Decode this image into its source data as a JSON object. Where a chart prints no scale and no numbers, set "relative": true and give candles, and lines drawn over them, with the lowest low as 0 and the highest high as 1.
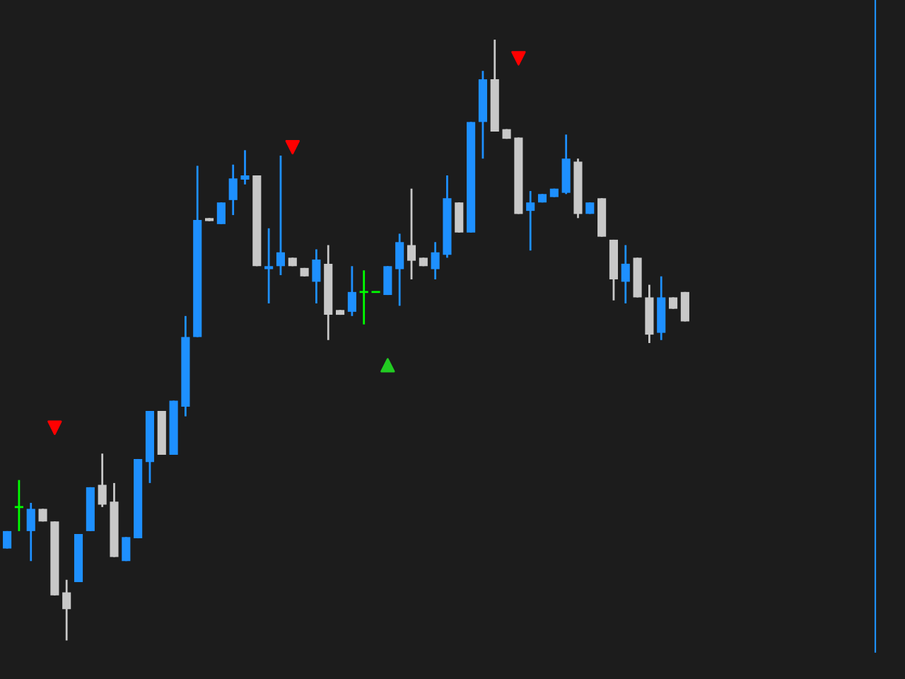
{
  "chart_data": {
    "type": "candlestick",
    "relative": true,
    "grid": false,
    "categories": [
      null,
      null,
      null,
      null,
      null,
      null,
      null,
      null,
      null,
      null,
      null,
      null,
      null,
      null,
      null,
      null,
      null,
      null,
      null,
      null,
      null,
      null,
      null,
      null,
      null,
      null,
      null,
      null,
      null,
      null,
      null,
      null,
      null,
      null,
      null,
      null,
      null,
      null,
      null,
      null,
      null,
      null,
      null,
      null,
      null,
      null,
      null,
      null,
      null,
      null,
      null,
      null,
      null,
      null,
      null,
      null,
      null,
      null
    ],
    "ohlc": [
      [
        0.153,
        0.182,
        0.153,
        0.182
      ],
      [
        0.222,
        0.267,
        0.182,
        0.222
      ],
      [
        0.182,
        0.229,
        0.132,
        0.219
      ],
      [
        0.219,
        0.219,
        0.198,
        0.198
      ],
      [
        0.198,
        0.198,
        0.075,
        0.075
      ],
      [
        0.08,
        0.101,
        0,
        0.052
      ],
      [
        0.097,
        0.177,
        0.097,
        0.177
      ],
      [
        0.182,
        0.255,
        0.182,
        0.255
      ],
      [
        0.259,
        0.311,
        0.222,
        0.226
      ],
      [
        0.231,
        0.262,
        0.139,
        0.139
      ],
      [
        0.132,
        0.172,
        0.132,
        0.172
      ],
      [
        0.17,
        0.302,
        0.17,
        0.302
      ],
      [
        0.297,
        0.382,
        0.262,
        0.382
      ],
      [
        0.382,
        0.382,
        0.309,
        0.309
      ],
      [
        0.309,
        0.399,
        0.309,
        0.399
      ],
      [
        0.389,
        0.54,
        0.373,
        0.505
      ],
      [
        0.505,
        0.79,
        0.505,
        0.7
      ],
      [
        0.703,
        0.703,
        0.698,
        0.698
      ],
      [
        0.693,
        0.729,
        0.693,
        0.729
      ],
      [
        0.733,
        0.792,
        0.708,
        0.769
      ],
      [
        0.767,
        0.816,
        0.759,
        0.774
      ],
      [
        0.774,
        0.774,
        0.623,
        0.623
      ],
      [
        0.618,
        0.686,
        0.561,
        0.623
      ],
      [
        0.623,
        0.807,
        0.608,
        0.646
      ],
      [
        0.637,
        0.637,
        0.623,
        0.623
      ],
      [
        0.62,
        0.62,
        0.606,
        0.606
      ],
      [
        0.597,
        0.651,
        0.561,
        0.634
      ],
      [
        0.627,
        0.658,
        0.5,
        0.542
      ],
      [
        0.55,
        0.55,
        0.542,
        0.542
      ],
      [
        0.547,
        0.623,
        0.54,
        0.58
      ],
      [
        0.58,
        0.616,
        0.526,
        0.58
      ],
      [
        0.58,
        0.58,
        0.58,
        0.58
      ],
      [
        0.575,
        0.623,
        0.575,
        0.623
      ],
      [
        0.618,
        0.677,
        0.557,
        0.663
      ],
      [
        0.658,
        0.752,
        0.601,
        0.632
      ],
      [
        0.637,
        0.637,
        0.623,
        0.623
      ],
      [
        0.618,
        0.663,
        0.601,
        0.646
      ],
      [
        0.642,
        0.774,
        0.637,
        0.736
      ],
      [
        0.729,
        0.729,
        0.679,
        0.679
      ],
      [
        0.679,
        0.863,
        0.679,
        0.863
      ],
      [
        0.863,
        0.948,
        0.802,
        0.934
      ],
      [
        0.934,
        1,
        0.847,
        0.847
      ],
      [
        0.851,
        0.851,
        0.835,
        0.835
      ],
      [
        0.837,
        0.837,
        0.71,
        0.71
      ],
      [
        0.715,
        0.748,
        0.649,
        0.729
      ],
      [
        0.729,
        0.743,
        0.729,
        0.743
      ],
      [
        0.738,
        0.752,
        0.738,
        0.752
      ],
      [
        0.745,
        0.842,
        0.743,
        0.802
      ],
      [
        0.797,
        0.802,
        0.703,
        0.71
      ],
      [
        0.71,
        0.729,
        0.71,
        0.729
      ],
      [
        0.736,
        0.736,
        0.672,
        0.672
      ],
      [
        0.667,
        0.667,
        0.566,
        0.601
      ],
      [
        0.597,
        0.658,
        0.561,
        0.627
      ],
      [
        0.637,
        0.637,
        0.571,
        0.571
      ],
      [
        0.571,
        0.592,
        0.495,
        0.509
      ],
      [
        0.512,
        0.606,
        0.5,
        0.571
      ],
      [
        0.571,
        0.571,
        0.552,
        0.552
      ],
      [
        0.58,
        0.58,
        0.531,
        0.531
      ]
    ],
    "colors": [
      "#1e90ff",
      "#00ff00",
      "#1e90ff",
      "#c8c8c8",
      "#c8c8c8",
      "#c8c8c8",
      "#1e90ff",
      "#1e90ff",
      "#c8c8c8",
      "#c8c8c8",
      "#1e90ff",
      "#1e90ff",
      "#1e90ff",
      "#c8c8c8",
      "#1e90ff",
      "#1e90ff",
      "#1e90ff",
      "#c8c8c8",
      "#1e90ff",
      "#1e90ff",
      "#1e90ff",
      "#c8c8c8",
      "#1e90ff",
      "#1e90ff",
      "#c8c8c8",
      "#c8c8c8",
      "#1e90ff",
      "#c8c8c8",
      "#c8c8c8",
      "#1e90ff",
      "#00ff00",
      "#00ff00",
      "#1e90ff",
      "#1e90ff",
      "#c8c8c8",
      "#c8c8c8",
      "#1e90ff",
      "#1e90ff",
      "#c8c8c8",
      "#1e90ff",
      "#1e90ff",
      "#c8c8c8",
      "#c8c8c8",
      "#c8c8c8",
      "#1e90ff",
      "#1e90ff",
      "#1e90ff",
      "#1e90ff",
      "#c8c8c8",
      "#1e90ff",
      "#c8c8c8",
      "#c8c8c8",
      "#1e90ff",
      "#c8c8c8",
      "#c8c8c8",
      "#1e90ff",
      "#c8c8c8",
      "#c8c8c8"
    ],
    "series": [
      {
        "type": "scatter",
        "marker": "triangle-down",
        "color": "#ff0000",
        "values": [
          null,
          null,
          null,
          null,
          0.354,
          null,
          null,
          null,
          null,
          null,
          null,
          null,
          null,
          null,
          null,
          null,
          null,
          null,
          null,
          null,
          null,
          null,
          null,
          null,
          0.821,
          null,
          null,
          null,
          null,
          null,
          null,
          null,
          null,
          null,
          null,
          null,
          null,
          null,
          null,
          null,
          null,
          null,
          null,
          0.969,
          null,
          null,
          null,
          null,
          null,
          null,
          null,
          null,
          null,
          null,
          null,
          null,
          null,
          null
        ]
      },
      {
        "type": "scatter",
        "marker": "triangle",
        "color": "#22cc22",
        "values": [
          null,
          null,
          null,
          null,
          null,
          null,
          null,
          null,
          null,
          null,
          null,
          null,
          null,
          null,
          null,
          null,
          null,
          null,
          null,
          null,
          null,
          null,
          null,
          null,
          null,
          null,
          null,
          null,
          null,
          null,
          null,
          null,
          0.458,
          null,
          null,
          null,
          null,
          null,
          null,
          null,
          null,
          null,
          null,
          null,
          null,
          null,
          null,
          null,
          null,
          null,
          null,
          null,
          null,
          null,
          null,
          null,
          null,
          null
        ]
      }
    ]
  }
}
